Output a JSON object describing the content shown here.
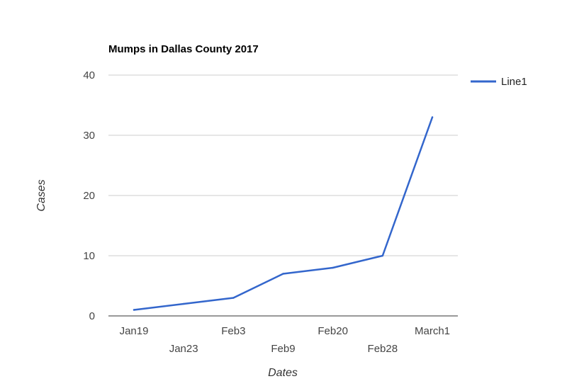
{
  "chart_data": {
    "type": "line",
    "title": "Mumps in Dallas County 2017",
    "xlabel": "Dates",
    "ylabel": "Cases",
    "categories": [
      "Jan19",
      "Jan23",
      "Feb3",
      "Feb9",
      "Feb20",
      "Feb28",
      "March1"
    ],
    "series": [
      {
        "name": "Line1",
        "values": [
          1,
          2,
          3,
          7,
          8,
          10,
          33
        ]
      }
    ],
    "ylim": [
      0,
      40
    ],
    "yticks": [
      "0",
      "10",
      "20",
      "30",
      "40"
    ],
    "grid": true,
    "legend": "right",
    "colors": {
      "line": "#3366cc",
      "grid": "#cccccc",
      "axis": "#333333"
    }
  }
}
